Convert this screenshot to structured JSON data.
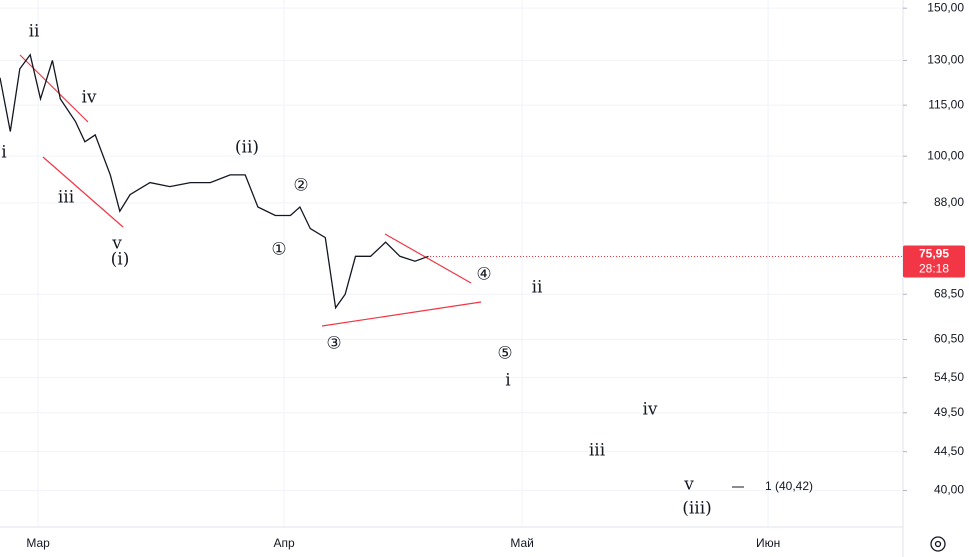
{
  "chart_data": {
    "type": "line",
    "log_scale": true,
    "grid": true,
    "xlim": [
      -4.8,
      109
    ],
    "xticks": [
      {
        "value": 0,
        "label": "Мар"
      },
      {
        "value": 31,
        "label": "Апр"
      },
      {
        "value": 61,
        "label": "Май"
      },
      {
        "value": 92,
        "label": "Июн"
      }
    ],
    "ylim": [
      36.2,
      153.4
    ],
    "yticks": [
      {
        "value": 150,
        "label": "150,00"
      },
      {
        "value": 130,
        "label": "130,00"
      },
      {
        "value": 115,
        "label": "115,00"
      },
      {
        "value": 100,
        "label": "100,00"
      },
      {
        "value": 88,
        "label": "88,00"
      },
      {
        "value": 68.5,
        "label": "68,50"
      },
      {
        "value": 60.5,
        "label": "60,50"
      },
      {
        "value": 54.5,
        "label": "54,50"
      },
      {
        "value": 49.5,
        "label": "49,50"
      },
      {
        "value": 44.5,
        "label": "44,50"
      },
      {
        "value": 40,
        "label": "40,00"
      }
    ],
    "series": [
      {
        "color": "#131722",
        "x": [
          -4.8,
          -3.5,
          -2.3,
          -1.0,
          0.3,
          1.8,
          2.8,
          4.7,
          5.9,
          7.2,
          9.1,
          10.3,
          11.6,
          14.1,
          16.6,
          19.2,
          21.7,
          24.2,
          26.1,
          27.7,
          29.9,
          31.8,
          33.0,
          34.3,
          36.2,
          37.5,
          38.7,
          40.0,
          41.9,
          43.8,
          45.6,
          47.5,
          49.2
        ],
        "values": [
          124,
          107,
          127,
          132,
          117,
          130,
          117,
          110,
          104,
          106,
          95,
          86,
          90,
          93,
          92,
          93,
          93,
          95,
          95,
          87,
          85,
          85,
          87,
          82,
          80,
          66,
          68.5,
          76,
          76,
          79,
          76,
          75,
          76
        ]
      }
    ],
    "last_price": {
      "value": 75.95,
      "label": "75,95"
    },
    "countdown": "28:18",
    "price_color": "#f23645",
    "annotations": [
      "ii",
      "iv",
      "i",
      "iii",
      "v",
      "(i)",
      "(ii)",
      "②",
      "①",
      "③",
      "④",
      "⑤",
      "ii",
      "i",
      "iv",
      "iii",
      "v",
      "(iii)"
    ],
    "target": "1 (40,42)"
  }
}
